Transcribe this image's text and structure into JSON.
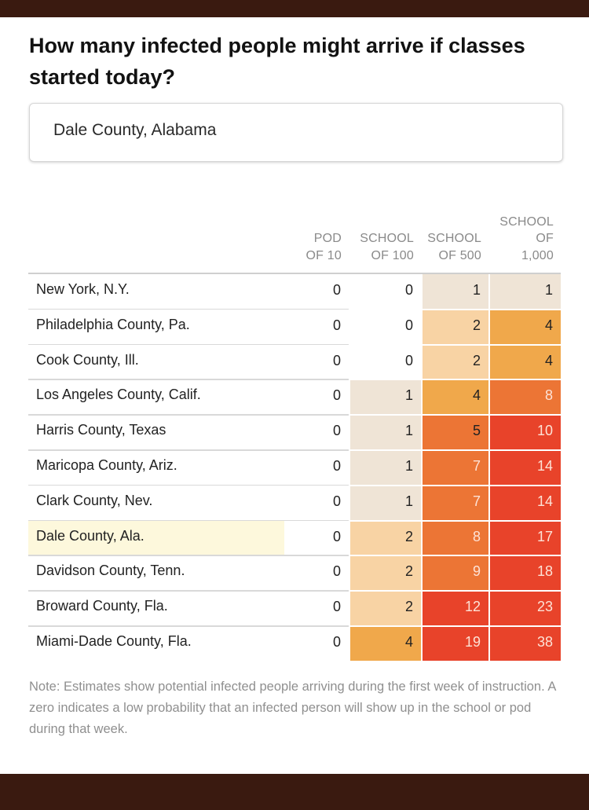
{
  "title": "How many infected people might arrive if classes started today?",
  "search": {
    "value": "Dale County, Alabama"
  },
  "colors": {
    "level0": "#ffffff",
    "level1": "#efe4d6",
    "level2": "#f8d3a4",
    "level4": "#f0a84b",
    "level8": "#ec7535",
    "level10plus": "#e8432a",
    "highlight_row": "#fdf8dc",
    "text_dark": "#222222",
    "text_light": "#fde2d6"
  },
  "chart_data": {
    "type": "table",
    "title": "How many infected people might arrive if classes started today?",
    "columns": [
      {
        "key": "pod10",
        "label_lines": [
          "POD",
          "OF 10"
        ]
      },
      {
        "key": "school100",
        "label_lines": [
          "SCHOOL",
          "OF 100"
        ]
      },
      {
        "key": "school500",
        "label_lines": [
          "SCHOOL",
          "OF 500"
        ]
      },
      {
        "key": "school1000",
        "label_lines": [
          "SCHOOL",
          "OF",
          "1,000"
        ]
      }
    ],
    "rows": [
      {
        "label": "New York, N.Y.",
        "values": [
          0,
          0,
          1,
          1
        ],
        "highlight": false
      },
      {
        "label": "Philadelphia County, Pa.",
        "values": [
          0,
          0,
          2,
          4
        ],
        "highlight": false
      },
      {
        "label": "Cook County, Ill.",
        "values": [
          0,
          0,
          2,
          4
        ],
        "highlight": false
      },
      {
        "label": "Los Angeles County, Calif.",
        "values": [
          0,
          1,
          4,
          8
        ],
        "highlight": false
      },
      {
        "label": "Harris County, Texas",
        "values": [
          0,
          1,
          5,
          10
        ],
        "highlight": false
      },
      {
        "label": "Maricopa County, Ariz.",
        "values": [
          0,
          1,
          7,
          14
        ],
        "highlight": false
      },
      {
        "label": "Clark County, Nev.",
        "values": [
          0,
          1,
          7,
          14
        ],
        "highlight": false
      },
      {
        "label": "Dale County, Ala.",
        "values": [
          0,
          2,
          8,
          17
        ],
        "highlight": true
      },
      {
        "label": "Davidson County, Tenn.",
        "values": [
          0,
          2,
          9,
          18
        ],
        "highlight": false
      },
      {
        "label": "Broward County, Fla.",
        "values": [
          0,
          2,
          12,
          23
        ],
        "highlight": false
      },
      {
        "label": "Miami-Dade County, Fla.",
        "values": [
          0,
          4,
          19,
          38
        ],
        "highlight": false
      }
    ],
    "note": "Note: Estimates show potential infected people arriving during the first week of instruction. A zero indicates a low probability that an infected person will show up in the school or pod during that week."
  }
}
